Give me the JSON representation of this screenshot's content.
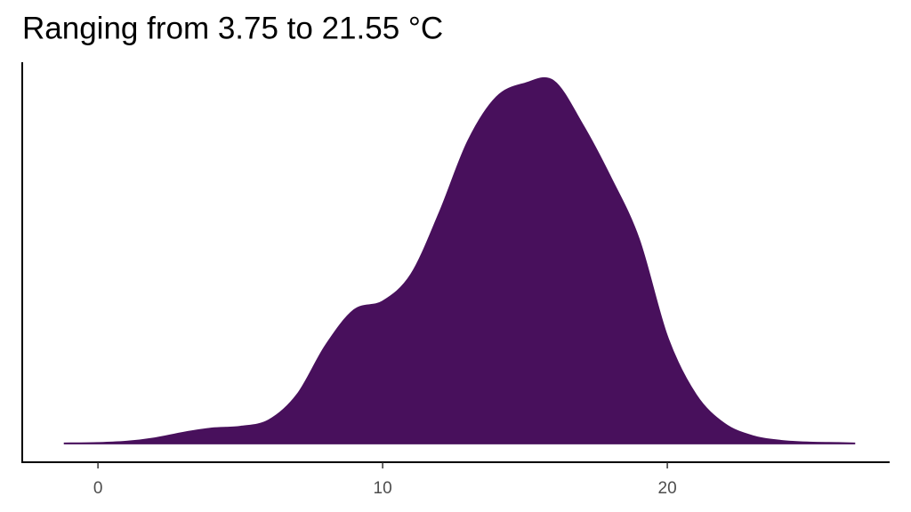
{
  "chart_data": {
    "type": "density",
    "title": "Ranging from 3.75 to 21.55 °C",
    "color": "#48105c",
    "x": [
      -1.2,
      0,
      1,
      2,
      3,
      4,
      5,
      6,
      7,
      8,
      9,
      10,
      11,
      12,
      13,
      14,
      15,
      16,
      17,
      18,
      19,
      20,
      21,
      22,
      23,
      24,
      25,
      26,
      26.6
    ],
    "values": [
      0,
      0.0001,
      0.0004,
      0.0012,
      0.0025,
      0.0035,
      0.0039,
      0.0054,
      0.0114,
      0.0229,
      0.0312,
      0.0332,
      0.0395,
      0.054,
      0.0707,
      0.081,
      0.0842,
      0.0848,
      0.0748,
      0.0623,
      0.0478,
      0.0249,
      0.0114,
      0.0046,
      0.0017,
      0.0006,
      0.0002,
      0.0001,
      0
    ],
    "xlim": [
      -2.66,
      27.81
    ],
    "ylim": [
      -0.0044,
      0.0892
    ],
    "xticks": [
      0,
      10,
      20
    ]
  }
}
